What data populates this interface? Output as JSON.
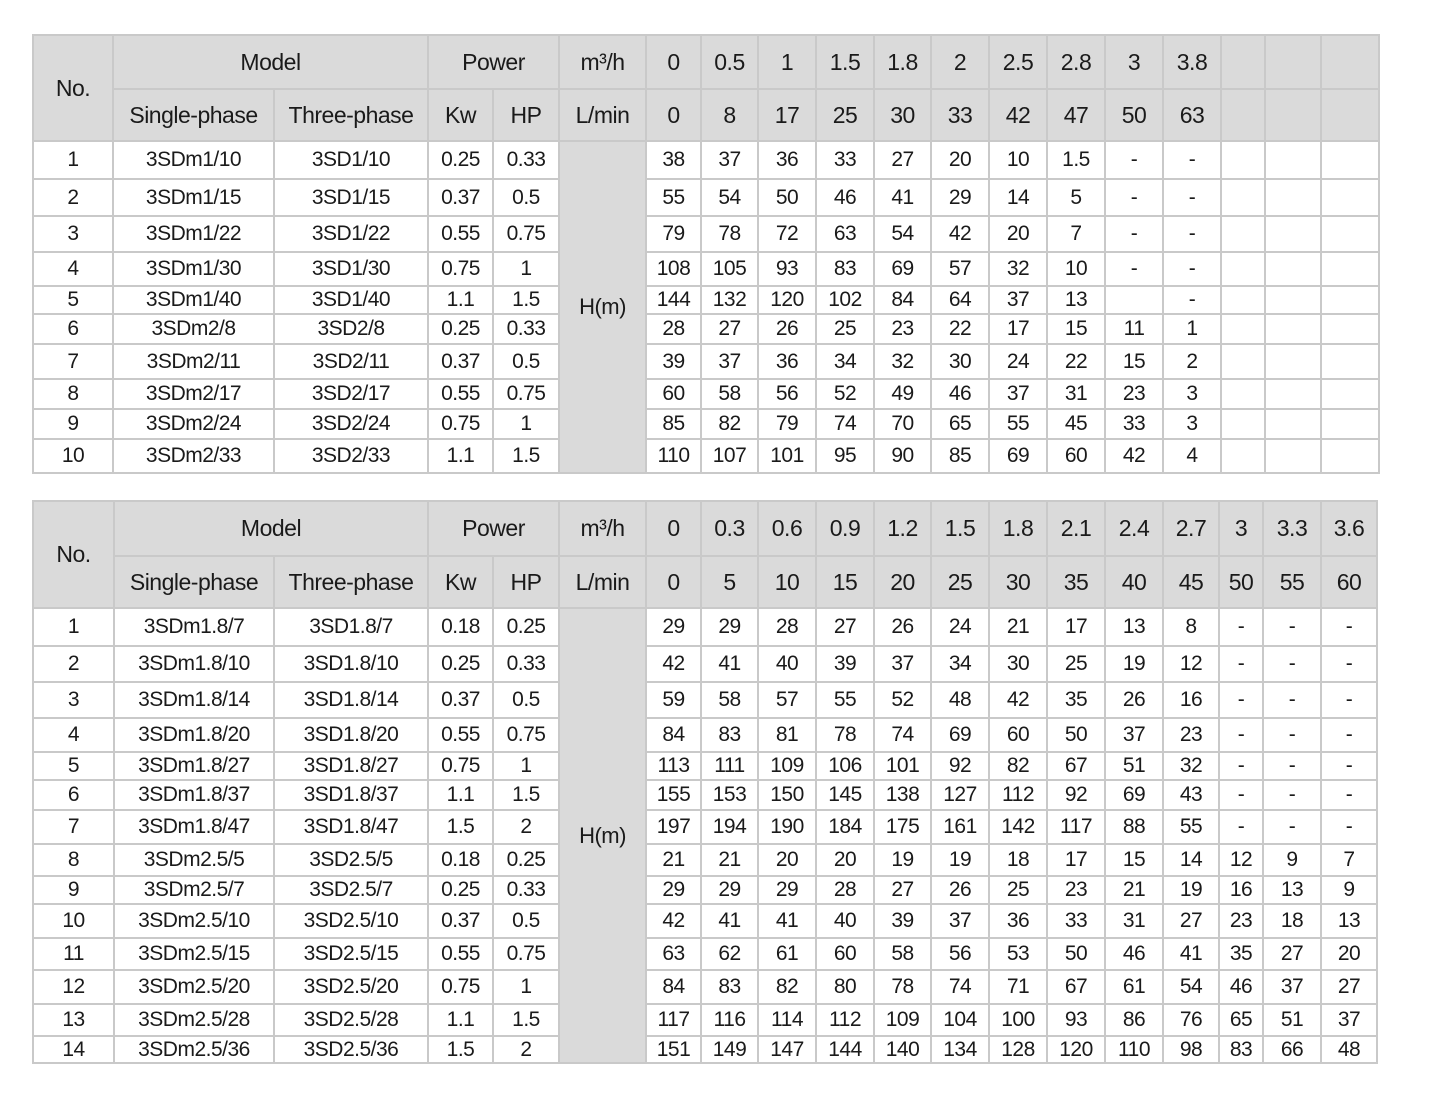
{
  "tables": [
    {
      "headers": {
        "no": "No.",
        "model": "Model",
        "single": "Single-phase",
        "three": "Three-phase",
        "power": "Power",
        "kw": "Kw",
        "hp": "HP",
        "m3h": "m³/h",
        "lmin": "L/min",
        "flow_m3h": [
          "0",
          "0.5",
          "1",
          "1.5",
          "1.8",
          "2",
          "2.5",
          "2.8",
          "3",
          "3.8",
          "",
          "",
          ""
        ],
        "flow_lmin": [
          "0",
          "8",
          "17",
          "25",
          "30",
          "33",
          "42",
          "47",
          "50",
          "63",
          "",
          "",
          ""
        ]
      },
      "h_label": "H(m)",
      "rows": [
        {
          "no": "1",
          "single": "3SDm1/10",
          "three": "3SD1/10",
          "kw": "0.25",
          "hp": "0.33",
          "head": [
            "38",
            "37",
            "36",
            "33",
            "27",
            "20",
            "10",
            "1.5",
            "-",
            "-",
            "",
            "",
            ""
          ]
        },
        {
          "no": "2",
          "single": "3SDm1/15",
          "three": "3SD1/15",
          "kw": "0.37",
          "hp": "0.5",
          "head": [
            "55",
            "54",
            "50",
            "46",
            "41",
            "29",
            "14",
            "5",
            "-",
            "-",
            "",
            "",
            ""
          ]
        },
        {
          "no": "3",
          "single": "3SDm1/22",
          "three": "3SD1/22",
          "kw": "0.55",
          "hp": "0.75",
          "head": [
            "79",
            "78",
            "72",
            "63",
            "54",
            "42",
            "20",
            "7",
            "-",
            "-",
            "",
            "",
            ""
          ]
        },
        {
          "no": "4",
          "single": "3SDm1/30",
          "three": "3SD1/30",
          "kw": "0.75",
          "hp": "1",
          "head": [
            "108",
            "105",
            "93",
            "83",
            "69",
            "57",
            "32",
            "10",
            "-",
            "-",
            "",
            "",
            ""
          ]
        },
        {
          "no": "5",
          "single": "3SDm1/40",
          "three": "3SD1/40",
          "kw": "1.1",
          "hp": "1.5",
          "head": [
            "144",
            "132",
            "120",
            "102",
            "84",
            "64",
            "37",
            "13",
            "",
            "-",
            "",
            "",
            ""
          ]
        },
        {
          "no": "6",
          "single": "3SDm2/8",
          "three": "3SD2/8",
          "kw": "0.25",
          "hp": "0.33",
          "head": [
            "28",
            "27",
            "26",
            "25",
            "23",
            "22",
            "17",
            "15",
            "11",
            "1",
            "",
            "",
            ""
          ]
        },
        {
          "no": "7",
          "single": "3SDm2/11",
          "three": "3SD2/11",
          "kw": "0.37",
          "hp": "0.5",
          "head": [
            "39",
            "37",
            "36",
            "34",
            "32",
            "30",
            "24",
            "22",
            "15",
            "2",
            "",
            "",
            ""
          ]
        },
        {
          "no": "8",
          "single": "3SDm2/17",
          "three": "3SD2/17",
          "kw": "0.55",
          "hp": "0.75",
          "head": [
            "60",
            "58",
            "56",
            "52",
            "49",
            "46",
            "37",
            "31",
            "23",
            "3",
            "",
            "",
            ""
          ]
        },
        {
          "no": "9",
          "single": "3SDm2/24",
          "three": "3SD2/24",
          "kw": "0.75",
          "hp": "1",
          "head": [
            "85",
            "82",
            "79",
            "74",
            "70",
            "65",
            "55",
            "45",
            "33",
            "3",
            "",
            "",
            ""
          ]
        },
        {
          "no": "10",
          "single": "3SDm2/33",
          "three": "3SD2/33",
          "kw": "1.1",
          "hp": "1.5",
          "head": [
            "110",
            "107",
            "101",
            "95",
            "90",
            "85",
            "69",
            "60",
            "42",
            "4",
            "",
            "",
            ""
          ]
        }
      ]
    },
    {
      "headers": {
        "no": "No.",
        "model": "Model",
        "single": "Single-phase",
        "three": "Three-phase",
        "power": "Power",
        "kw": "Kw",
        "hp": "HP",
        "m3h": "m³/h",
        "lmin": "L/min",
        "flow_m3h": [
          "0",
          "0.3",
          "0.6",
          "0.9",
          "1.2",
          "1.5",
          "1.8",
          "2.1",
          "2.4",
          "2.7",
          "3",
          "3.3",
          "3.6"
        ],
        "flow_lmin": [
          "0",
          "5",
          "10",
          "15",
          "20",
          "25",
          "30",
          "35",
          "40",
          "45",
          "50",
          "55",
          "60"
        ]
      },
      "h_label": "H(m)",
      "rows": [
        {
          "no": "1",
          "single": "3SDm1.8/7",
          "three": "3SD1.8/7",
          "kw": "0.18",
          "hp": "0.25",
          "head": [
            "29",
            "29",
            "28",
            "27",
            "26",
            "24",
            "21",
            "17",
            "13",
            "8",
            "-",
            "-",
            "-"
          ]
        },
        {
          "no": "2",
          "single": "3SDm1.8/10",
          "three": "3SD1.8/10",
          "kw": "0.25",
          "hp": "0.33",
          "head": [
            "42",
            "41",
            "40",
            "39",
            "37",
            "34",
            "30",
            "25",
            "19",
            "12",
            "-",
            "-",
            "-"
          ]
        },
        {
          "no": "3",
          "single": "3SDm1.8/14",
          "three": "3SD1.8/14",
          "kw": "0.37",
          "hp": "0.5",
          "head": [
            "59",
            "58",
            "57",
            "55",
            "52",
            "48",
            "42",
            "35",
            "26",
            "16",
            "-",
            "-",
            "-"
          ]
        },
        {
          "no": "4",
          "single": "3SDm1.8/20",
          "three": "3SD1.8/20",
          "kw": "0.55",
          "hp": "0.75",
          "head": [
            "84",
            "83",
            "81",
            "78",
            "74",
            "69",
            "60",
            "50",
            "37",
            "23",
            "-",
            "-",
            "-"
          ]
        },
        {
          "no": "5",
          "single": "3SDm1.8/27",
          "three": "3SD1.8/27",
          "kw": "0.75",
          "hp": "1",
          "head": [
            "113",
            "111",
            "109",
            "106",
            "101",
            "92",
            "82",
            "67",
            "51",
            "32",
            "-",
            "-",
            "-"
          ]
        },
        {
          "no": "6",
          "single": "3SDm1.8/37",
          "three": "3SD1.8/37",
          "kw": "1.1",
          "hp": "1.5",
          "head": [
            "155",
            "153",
            "150",
            "145",
            "138",
            "127",
            "112",
            "92",
            "69",
            "43",
            "-",
            "-",
            "-"
          ]
        },
        {
          "no": "7",
          "single": "3SDm1.8/47",
          "three": "3SD1.8/47",
          "kw": "1.5",
          "hp": "2",
          "head": [
            "197",
            "194",
            "190",
            "184",
            "175",
            "161",
            "142",
            "117",
            "88",
            "55",
            "-",
            "-",
            "-"
          ]
        },
        {
          "no": "8",
          "single": "3SDm2.5/5",
          "three": "3SD2.5/5",
          "kw": "0.18",
          "hp": "0.25",
          "head": [
            "21",
            "21",
            "20",
            "20",
            "19",
            "19",
            "18",
            "17",
            "15",
            "14",
            "12",
            "9",
            "7"
          ]
        },
        {
          "no": "9",
          "single": "3SDm2.5/7",
          "three": "3SD2.5/7",
          "kw": "0.25",
          "hp": "0.33",
          "head": [
            "29",
            "29",
            "29",
            "28",
            "27",
            "26",
            "25",
            "23",
            "21",
            "19",
            "16",
            "13",
            "9"
          ]
        },
        {
          "no": "10",
          "single": "3SDm2.5/10",
          "three": "3SD2.5/10",
          "kw": "0.37",
          "hp": "0.5",
          "head": [
            "42",
            "41",
            "41",
            "40",
            "39",
            "37",
            "36",
            "33",
            "31",
            "27",
            "23",
            "18",
            "13"
          ]
        },
        {
          "no": "11",
          "single": "3SDm2.5/15",
          "three": "3SD2.5/15",
          "kw": "0.55",
          "hp": "0.75",
          "head": [
            "63",
            "62",
            "61",
            "60",
            "58",
            "56",
            "53",
            "50",
            "46",
            "41",
            "35",
            "27",
            "20"
          ]
        },
        {
          "no": "12",
          "single": "3SDm2.5/20",
          "three": "3SD2.5/20",
          "kw": "0.75",
          "hp": "1",
          "head": [
            "84",
            "83",
            "82",
            "80",
            "78",
            "74",
            "71",
            "67",
            "61",
            "54",
            "46",
            "37",
            "27"
          ]
        },
        {
          "no": "13",
          "single": "3SDm2.5/28",
          "three": "3SD2.5/28",
          "kw": "1.1",
          "hp": "1.5",
          "head": [
            "117",
            "116",
            "114",
            "112",
            "109",
            "104",
            "100",
            "93",
            "86",
            "76",
            "65",
            "51",
            "37"
          ]
        },
        {
          "no": "14",
          "single": "3SDm2.5/36",
          "three": "3SD2.5/36",
          "kw": "1.5",
          "hp": "2",
          "head": [
            "151",
            "149",
            "147",
            "144",
            "140",
            "134",
            "128",
            "120",
            "110",
            "98",
            "83",
            "66",
            "48"
          ]
        }
      ]
    }
  ]
}
